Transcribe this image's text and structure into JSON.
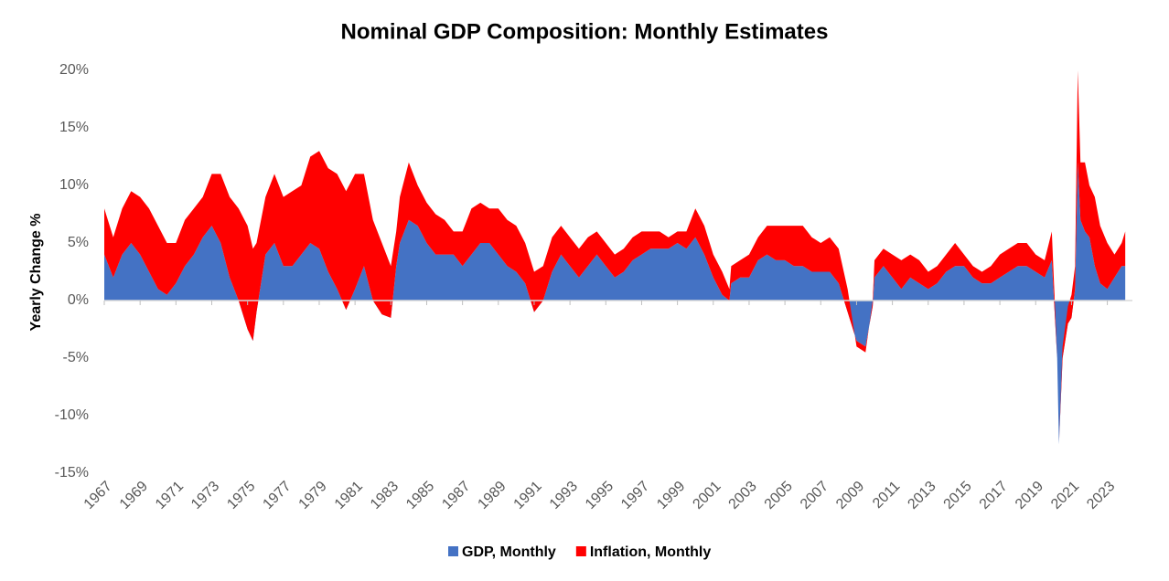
{
  "chart_data": {
    "type": "area",
    "stacked": true,
    "title": "Nominal GDP Composition: Monthly Estimates",
    "y_label": "Yearly Change %",
    "x": [
      1967.0,
      1967.5,
      1968.0,
      1968.5,
      1969.0,
      1969.5,
      1970.0,
      1970.5,
      1971.0,
      1971.5,
      1972.0,
      1972.5,
      1973.0,
      1973.5,
      1974.0,
      1974.5,
      1975.0,
      1975.3,
      1975.5,
      1976.0,
      1976.5,
      1977.0,
      1977.5,
      1978.0,
      1978.5,
      1979.0,
      1979.5,
      1980.0,
      1980.5,
      1981.0,
      1981.5,
      1982.0,
      1982.5,
      1983.0,
      1983.3,
      1983.5,
      1984.0,
      1984.5,
      1985.0,
      1985.5,
      1986.0,
      1986.5,
      1987.0,
      1987.5,
      1988.0,
      1988.5,
      1989.0,
      1989.5,
      1990.0,
      1990.5,
      1991.0,
      1991.5,
      1992.0,
      1992.5,
      1993.0,
      1993.5,
      1994.0,
      1994.5,
      1995.0,
      1995.5,
      1996.0,
      1996.5,
      1997.0,
      1997.5,
      1998.0,
      1998.5,
      1999.0,
      1999.5,
      2000.0,
      2000.5,
      2001.0,
      2001.5,
      2001.9,
      2002.0,
      2002.5,
      2003.0,
      2003.5,
      2004.0,
      2004.5,
      2005.0,
      2005.5,
      2006.0,
      2006.5,
      2007.0,
      2007.5,
      2008.0,
      2008.5,
      2009.0,
      2009.5,
      2009.9,
      2010.0,
      2010.5,
      2011.0,
      2011.5,
      2012.0,
      2012.5,
      2013.0,
      2013.5,
      2014.0,
      2014.5,
      2015.0,
      2015.5,
      2016.0,
      2016.5,
      2017.0,
      2017.5,
      2018.0,
      2018.5,
      2019.0,
      2019.5,
      2019.9,
      2020.2,
      2020.3,
      2020.5,
      2020.8,
      2021.0,
      2021.2,
      2021.35,
      2021.5,
      2021.75,
      2022.0,
      2022.3,
      2022.6,
      2023.0,
      2023.4,
      2023.8,
      2024.0
    ],
    "series": [
      {
        "name": "GDP, Monthly",
        "color": "#4472c4",
        "values": [
          4,
          2,
          4,
          5,
          4,
          2.5,
          1,
          0.5,
          1.5,
          3,
          4,
          5.5,
          6.5,
          5,
          2,
          0,
          -2.5,
          -3.5,
          -1,
          4,
          5,
          3,
          3,
          4,
          5,
          4.5,
          2.5,
          1,
          -0.8,
          1,
          3,
          0,
          -1.2,
          -1.5,
          3,
          5,
          7,
          6.5,
          5,
          4,
          4,
          4,
          3,
          4,
          5,
          5,
          4,
          3,
          2.5,
          1.5,
          -1,
          0,
          2.5,
          4,
          3,
          2,
          3,
          4,
          3,
          2,
          2.5,
          3.5,
          4,
          4.5,
          4.5,
          4.5,
          5,
          4.5,
          5.5,
          4,
          2,
          0.5,
          0,
          1.5,
          2,
          2,
          3.5,
          4,
          3.5,
          3.5,
          3,
          3,
          2.5,
          2.5,
          2.5,
          1.5,
          -1,
          -3.5,
          -4,
          -0.5,
          2,
          3,
          2,
          1,
          2,
          1.5,
          1,
          1.5,
          2.5,
          3,
          3,
          2,
          1.5,
          1.5,
          2,
          2.5,
          3,
          3,
          2.5,
          2,
          3.5,
          -5,
          -12.5,
          -5,
          -2,
          -1.5,
          1,
          12,
          7,
          6,
          5.5,
          3,
          1.5,
          1,
          2,
          3,
          3
        ]
      },
      {
        "name": "Inflation, Monthly",
        "color": "#ff0000",
        "values": [
          4,
          3.5,
          4,
          4.5,
          5,
          5.5,
          5.5,
          4.5,
          3.5,
          4,
          4,
          3.5,
          4.5,
          6,
          7,
          8,
          9,
          8,
          6,
          5,
          6,
          6,
          6.5,
          6,
          7.5,
          8.5,
          9,
          10,
          10.3,
          10,
          8,
          7,
          6.2,
          4.5,
          3,
          4,
          5,
          3.5,
          3.5,
          3.5,
          3,
          2,
          3,
          4,
          3.5,
          3,
          4,
          4,
          4,
          3.5,
          3.5,
          3,
          3,
          2.5,
          2.5,
          2.5,
          2.5,
          2,
          2,
          2,
          2,
          2,
          2,
          1.5,
          1.5,
          1,
          1,
          1.5,
          2.5,
          2.5,
          2,
          2,
          1,
          1.5,
          1.5,
          2,
          2,
          2.5,
          3,
          3,
          3.5,
          3.5,
          3,
          2.5,
          3,
          3,
          2,
          -0.5,
          -0.5,
          0.5,
          1.5,
          1.5,
          2,
          2.5,
          2,
          2,
          1.5,
          1.5,
          1.5,
          2,
          1,
          1,
          1,
          1.5,
          2,
          2,
          2,
          2,
          1.5,
          1.5,
          2.5,
          0,
          0,
          1,
          1.5,
          2,
          2,
          8,
          5,
          6,
          4.5,
          6,
          5,
          4,
          2,
          2,
          3
        ]
      }
    ],
    "xlim": [
      1967,
      2024.4
    ],
    "xticks": [
      1967,
      1969,
      1971,
      1973,
      1975,
      1977,
      1979,
      1981,
      1983,
      1985,
      1987,
      1989,
      1991,
      1993,
      1995,
      1997,
      1999,
      2001,
      2003,
      2005,
      2007,
      2009,
      2011,
      2013,
      2015,
      2017,
      2019,
      2021,
      2023
    ],
    "ylim": [
      -15,
      20
    ],
    "yticks": [
      {
        "value": -15,
        "label": "-15%"
      },
      {
        "value": -10,
        "label": "-10%"
      },
      {
        "value": -5,
        "label": "-5%"
      },
      {
        "value": 0,
        "label": "0%"
      },
      {
        "value": 5,
        "label": "5%"
      },
      {
        "value": 10,
        "label": "10%"
      },
      {
        "value": 15,
        "label": "15%"
      },
      {
        "value": 20,
        "label": "20%"
      }
    ],
    "grid": false,
    "legend": "bottom"
  }
}
